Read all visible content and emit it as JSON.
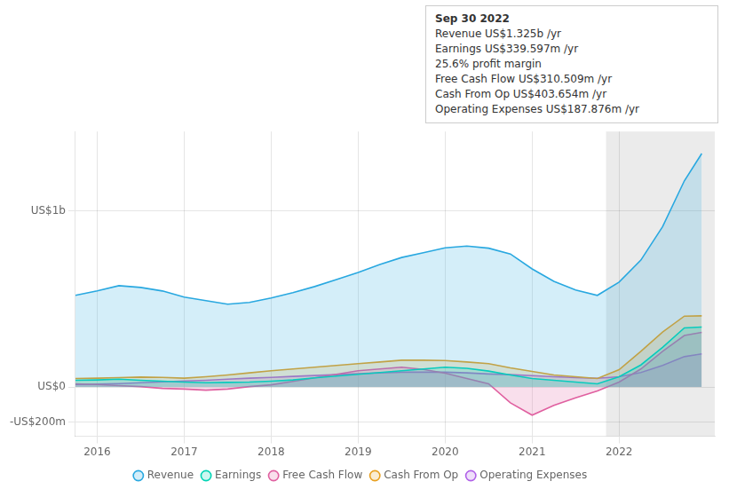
{
  "chart_data": {
    "type": "area",
    "x": [
      2015.75,
      2016.0,
      2016.25,
      2016.5,
      2016.75,
      2017.0,
      2017.25,
      2017.5,
      2017.75,
      2018.0,
      2018.25,
      2018.5,
      2018.75,
      2019.0,
      2019.25,
      2019.5,
      2019.75,
      2020.0,
      2020.25,
      2020.5,
      2020.75,
      2021.0,
      2021.25,
      2021.5,
      2021.75,
      2022.0,
      2022.25,
      2022.5,
      2022.75,
      2022.95
    ],
    "series": [
      {
        "name": "Revenue",
        "color": "#29a8e0",
        "values": [
          520,
          545,
          575,
          565,
          545,
          510,
          490,
          470,
          480,
          505,
          535,
          570,
          610,
          650,
          695,
          735,
          762,
          790,
          800,
          788,
          755,
          670,
          600,
          550,
          520,
          595,
          720,
          910,
          1170,
          1325
        ]
      },
      {
        "name": "Earnings",
        "color": "#00d4b4",
        "values": [
          38,
          40,
          44,
          38,
          33,
          28,
          24,
          26,
          28,
          33,
          40,
          52,
          62,
          72,
          82,
          92,
          102,
          112,
          106,
          90,
          68,
          48,
          38,
          28,
          18,
          58,
          125,
          225,
          335,
          340
        ]
      },
      {
        "name": "Free Cash Flow",
        "color": "#e060a0",
        "values": [
          18,
          14,
          8,
          2,
          -8,
          -12,
          -18,
          -12,
          2,
          12,
          32,
          52,
          72,
          92,
          102,
          112,
          100,
          78,
          48,
          18,
          -90,
          -160,
          -105,
          -62,
          -22,
          28,
          102,
          202,
          292,
          310
        ]
      },
      {
        "name": "Cash From Op",
        "color": "#e8a020",
        "values": [
          48,
          50,
          53,
          56,
          54,
          50,
          58,
          68,
          80,
          92,
          102,
          112,
          122,
          132,
          142,
          152,
          152,
          150,
          142,
          132,
          108,
          88,
          68,
          58,
          48,
          98,
          202,
          312,
          402,
          404
        ]
      },
      {
        "name": "Operating Expenses",
        "color": "#b060e8",
        "values": [
          14,
          16,
          19,
          24,
          29,
          34,
          38,
          44,
          50,
          54,
          60,
          65,
          70,
          75,
          80,
          84,
          84,
          84,
          80,
          74,
          70,
          64,
          58,
          53,
          49,
          58,
          82,
          122,
          172,
          188
        ]
      }
    ],
    "xlim": [
      2015.75,
      2023.1
    ],
    "xticks": [
      2016,
      2017,
      2018,
      2019,
      2020,
      2021,
      2022
    ],
    "ylim": [
      -280,
      1450
    ],
    "yticks": [
      {
        "value": -200,
        "label": "-US$200m"
      },
      {
        "value": 0,
        "label": "US$0"
      },
      {
        "value": 1000,
        "label": "US$1b"
      }
    ],
    "grid": true,
    "legend": "bottom",
    "shaded_x": [
      2021.85,
      2023.1
    ],
    "annotations": [
      "Sep 30 2022",
      "Revenue US$1.325b /yr",
      "Earnings US$339.597m /yr",
      "25.6% profit margin",
      "Free Cash Flow US$310.509m /yr",
      "Cash From Op US$403.654m /yr",
      "Operating Expenses US$187.876m /yr"
    ]
  }
}
